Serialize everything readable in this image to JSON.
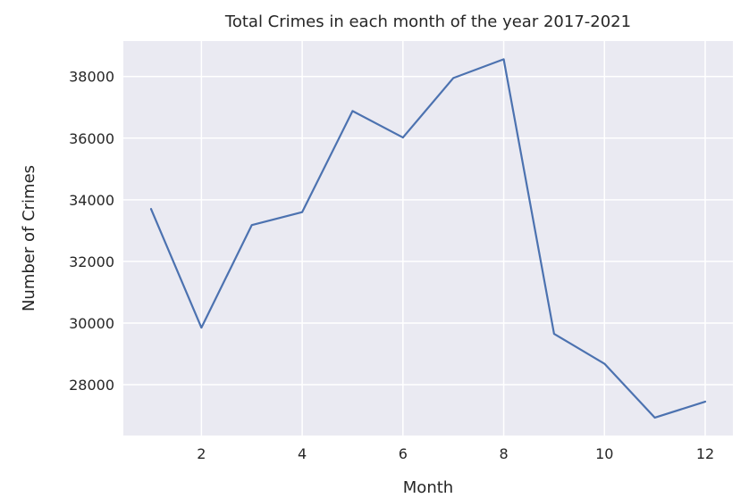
{
  "chart_data": {
    "type": "line",
    "title": "Total Crimes in each month of the year 2017-2021",
    "xlabel": "Month",
    "ylabel": "Number of Crimes",
    "x": [
      1,
      2,
      3,
      4,
      5,
      6,
      7,
      8,
      9,
      10,
      11,
      12
    ],
    "series": [
      {
        "values": [
          33700,
          29850,
          33180,
          33600,
          36880,
          36020,
          37950,
          38560,
          29650,
          28680,
          26930,
          27450
        ]
      }
    ],
    "xticks": [
      2,
      4,
      6,
      8,
      10,
      12
    ],
    "yticks": [
      28000,
      30000,
      32000,
      34000,
      36000,
      38000
    ],
    "xlim": [
      0.45,
      12.55
    ],
    "ylim": [
      26350,
      39150
    ],
    "grid": true,
    "colors": {
      "background": "#eaeaf2",
      "grid": "#ffffff",
      "line": "#4c72b0",
      "text": "#262626"
    }
  }
}
